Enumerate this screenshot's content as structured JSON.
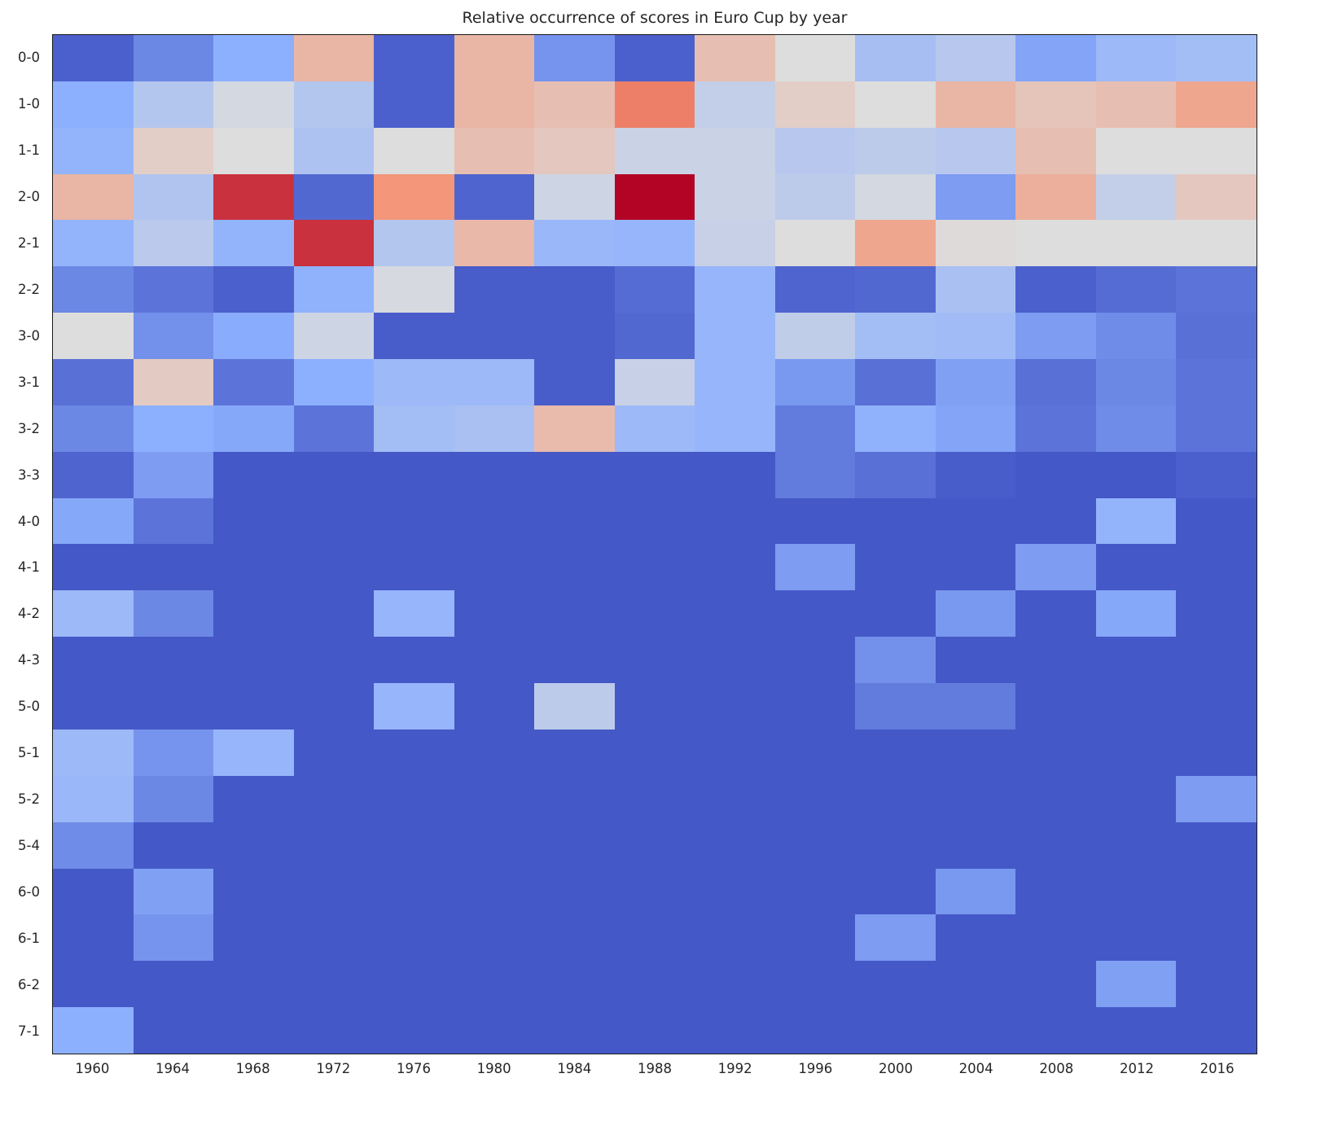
{
  "figure": {
    "background": "#ffffff",
    "axes_border_color": "#1a1a1a",
    "text_color": "#262626"
  },
  "chart_data": {
    "type": "heatmap",
    "title": "Relative occurrence of scores in Euro Cup by year",
    "xlabel": "",
    "ylabel": "",
    "legend": "none",
    "grid": false,
    "colormap": "coolwarm",
    "colormap_stops": [
      [
        0.0,
        "#3b4cc0"
      ],
      [
        0.25,
        "#8db0fe"
      ],
      [
        0.5,
        "#dddddd"
      ],
      [
        0.75,
        "#f59071"
      ],
      [
        1.0,
        "#b40426"
      ]
    ],
    "value_range": [
      0,
      1
    ],
    "x_tick_labels": [
      "1960",
      "1964",
      "1968",
      "1972",
      "1976",
      "1980",
      "1984",
      "1988",
      "1992",
      "1996",
      "2000",
      "2004",
      "2008",
      "2012",
      "2016"
    ],
    "y_tick_labels": [
      "0-0",
      "1-0",
      "1-1",
      "2-0",
      "2-1",
      "2-2",
      "3-0",
      "3-1",
      "3-2",
      "3-3",
      "4-0",
      "4-1",
      "4-2",
      "4-3",
      "5-0",
      "5-1",
      "5-2",
      "5-4",
      "6-0",
      "6-1",
      "6-2",
      "7-1"
    ],
    "values": [
      [
        0.05,
        0.15,
        0.25,
        0.63,
        0.05,
        0.63,
        0.18,
        0.05,
        0.6,
        0.5,
        0.33,
        0.38,
        0.22,
        0.3,
        0.32
      ],
      [
        0.25,
        0.37,
        0.47,
        0.37,
        0.05,
        0.63,
        0.6,
        0.78,
        0.42,
        0.55,
        0.5,
        0.63,
        0.58,
        0.6,
        0.68
      ],
      [
        0.27,
        0.55,
        0.5,
        0.35,
        0.5,
        0.6,
        0.57,
        0.44,
        0.44,
        0.38,
        0.4,
        0.38,
        0.6,
        0.5,
        0.5
      ],
      [
        0.63,
        0.36,
        0.92,
        0.07,
        0.73,
        0.06,
        0.45,
        1.0,
        0.44,
        0.4,
        0.47,
        0.2,
        0.65,
        0.42,
        0.57
      ],
      [
        0.27,
        0.39,
        0.27,
        0.92,
        0.37,
        0.62,
        0.29,
        0.28,
        0.43,
        0.5,
        0.68,
        0.51,
        0.5,
        0.5,
        0.5
      ],
      [
        0.15,
        0.1,
        0.05,
        0.26,
        0.48,
        0.04,
        0.04,
        0.08,
        0.28,
        0.06,
        0.07,
        0.34,
        0.05,
        0.08,
        0.1
      ],
      [
        0.5,
        0.17,
        0.24,
        0.45,
        0.04,
        0.04,
        0.04,
        0.07,
        0.28,
        0.41,
        0.32,
        0.31,
        0.2,
        0.16,
        0.09
      ],
      [
        0.09,
        0.56,
        0.1,
        0.25,
        0.3,
        0.3,
        0.04,
        0.43,
        0.28,
        0.19,
        0.09,
        0.21,
        0.09,
        0.15,
        0.1
      ],
      [
        0.15,
        0.25,
        0.23,
        0.1,
        0.32,
        0.34,
        0.61,
        0.3,
        0.28,
        0.12,
        0.26,
        0.22,
        0.1,
        0.16,
        0.1
      ],
      [
        0.06,
        0.2,
        0.03,
        0.03,
        0.03,
        0.03,
        0.03,
        0.03,
        0.03,
        0.12,
        0.09,
        0.04,
        0.03,
        0.03,
        0.05
      ],
      [
        0.23,
        0.1,
        0.03,
        0.03,
        0.03,
        0.03,
        0.03,
        0.03,
        0.03,
        0.03,
        0.03,
        0.03,
        0.03,
        0.27,
        0.03
      ],
      [
        0.03,
        0.03,
        0.03,
        0.03,
        0.03,
        0.03,
        0.03,
        0.03,
        0.03,
        0.2,
        0.03,
        0.03,
        0.2,
        0.03,
        0.03
      ],
      [
        0.3,
        0.15,
        0.03,
        0.03,
        0.28,
        0.03,
        0.03,
        0.03,
        0.03,
        0.03,
        0.03,
        0.19,
        0.03,
        0.23,
        0.03
      ],
      [
        0.03,
        0.03,
        0.03,
        0.03,
        0.03,
        0.03,
        0.03,
        0.03,
        0.03,
        0.03,
        0.17,
        0.03,
        0.03,
        0.03,
        0.03
      ],
      [
        0.03,
        0.03,
        0.03,
        0.03,
        0.28,
        0.03,
        0.4,
        0.03,
        0.03,
        0.03,
        0.12,
        0.12,
        0.03,
        0.03,
        0.03
      ],
      [
        0.3,
        0.18,
        0.28,
        0.03,
        0.03,
        0.03,
        0.03,
        0.03,
        0.03,
        0.03,
        0.03,
        0.03,
        0.03,
        0.03,
        0.03
      ],
      [
        0.29,
        0.15,
        0.03,
        0.03,
        0.03,
        0.03,
        0.03,
        0.03,
        0.03,
        0.03,
        0.03,
        0.03,
        0.03,
        0.03,
        0.2
      ],
      [
        0.16,
        0.03,
        0.03,
        0.03,
        0.03,
        0.03,
        0.03,
        0.03,
        0.03,
        0.03,
        0.03,
        0.03,
        0.03,
        0.03,
        0.03
      ],
      [
        0.03,
        0.21,
        0.03,
        0.03,
        0.03,
        0.03,
        0.03,
        0.03,
        0.03,
        0.03,
        0.03,
        0.19,
        0.03,
        0.03,
        0.03
      ],
      [
        0.03,
        0.18,
        0.03,
        0.03,
        0.03,
        0.03,
        0.03,
        0.03,
        0.03,
        0.03,
        0.2,
        0.03,
        0.03,
        0.03,
        0.03
      ],
      [
        0.03,
        0.03,
        0.03,
        0.03,
        0.03,
        0.03,
        0.03,
        0.03,
        0.03,
        0.03,
        0.03,
        0.03,
        0.03,
        0.21,
        0.03
      ],
      [
        0.25,
        0.03,
        0.03,
        0.03,
        0.03,
        0.03,
        0.03,
        0.03,
        0.03,
        0.03,
        0.03,
        0.03,
        0.03,
        0.03,
        0.03
      ]
    ]
  }
}
